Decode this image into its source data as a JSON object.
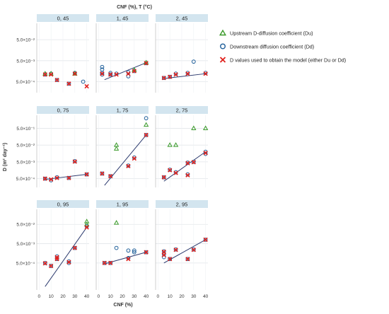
{
  "chart_data": {
    "type": "scatter",
    "title": "CNF (%), T (°C)",
    "xlabel": "CNF (%)",
    "ylabel": "D (m² day⁻¹)",
    "y_scale": "log",
    "x_ticks": [
      0,
      10,
      20,
      30,
      40
    ],
    "x_tick_labels": [
      "0",
      "10",
      "20",
      "30",
      "40"
    ],
    "xlim": [
      -2,
      42
    ],
    "y_tick_labels": [
      "5.0×10⁻¹",
      "5.0×10⁻²",
      "5.0×10⁻³",
      "5.0×10⁻⁴"
    ],
    "y_tick_values": [
      0.5,
      0.05,
      0.005,
      0.0005
    ],
    "legend": {
      "placement": "right",
      "entries": [
        {
          "key": "du",
          "marker": "triangle",
          "color": "#3a9a2a",
          "text": "Upstream D-diffusion coefficient (Du)"
        },
        {
          "key": "dd",
          "marker": "circle",
          "color": "#1f5f9a",
          "text": "Downstream diffusion coefficient (Dd)"
        },
        {
          "key": "dm",
          "marker": "x",
          "color": "#e0201c",
          "text": "D values used to obtain the model (either Du or Dd)"
        }
      ]
    },
    "colors": {
      "du": "#3a9a2a",
      "dd": "#1f5f9a",
      "dm": "#e0201c",
      "fit": "#2c3a6e",
      "strip": "#d3e5ef"
    },
    "panels": [
      {
        "label": "0, 45",
        "ylim": [
          0.00015,
          0.3
        ],
        "y_ticks": [
          0.05,
          0.005,
          0.0005
        ],
        "y_tick_labels": [
          "5.0×10⁻²",
          "5.0×10⁻³",
          "5.0×10⁻⁴"
        ],
        "du": [
          [
            5,
            0.0012
          ],
          [
            10,
            0.0012
          ],
          [
            30,
            0.0012
          ]
        ],
        "dd": [
          [
            5,
            0.0011
          ],
          [
            10,
            0.0012
          ],
          [
            15,
            0.0006
          ],
          [
            25,
            0.0004
          ],
          [
            30,
            0.0013
          ],
          [
            37,
            0.0005
          ]
        ],
        "model": [
          [
            5,
            0.0011
          ],
          [
            10,
            0.0011
          ],
          [
            15,
            0.0006
          ],
          [
            25,
            0.0004
          ],
          [
            30,
            0.0012
          ],
          [
            40,
            0.0003
          ]
        ],
        "fit": null
      },
      {
        "label": "1, 45",
        "ylim": [
          0.00015,
          0.3
        ],
        "y_ticks": [
          0.05,
          0.005,
          0.0005
        ],
        "y_tick_labels": [
          "",
          "",
          ""
        ],
        "du": [
          [
            30,
            0.0018
          ],
          [
            40,
            0.004
          ]
        ],
        "dd": [
          [
            3,
            0.0025
          ],
          [
            3,
            0.0019
          ],
          [
            3,
            0.0013
          ],
          [
            3,
            0.0011
          ],
          [
            10,
            0.0013
          ],
          [
            10,
            0.0011
          ],
          [
            15,
            0.0012
          ],
          [
            25,
            0.0014
          ],
          [
            25,
            0.0009
          ],
          [
            30,
            0.0016
          ],
          [
            40,
            0.0038
          ]
        ],
        "model": [
          [
            3,
            0.0012
          ],
          [
            10,
            0.0011
          ],
          [
            15,
            0.0011
          ],
          [
            25,
            0.0012
          ],
          [
            30,
            0.0016
          ],
          [
            40,
            0.0038
          ]
        ],
        "fit": [
          [
            5,
            0.00062
          ],
          [
            40,
            0.004
          ]
        ]
      },
      {
        "label": "2, 45",
        "ylim": [
          0.00015,
          0.3
        ],
        "y_ticks": [
          0.05,
          0.005,
          0.0005
        ],
        "y_tick_labels": [
          "",
          "",
          ""
        ],
        "du": [],
        "dd": [
          [
            5,
            0.00075
          ],
          [
            10,
            0.00085
          ],
          [
            15,
            0.0012
          ],
          [
            25,
            0.0013
          ],
          [
            30,
            0.0045
          ],
          [
            40,
            0.0013
          ]
        ],
        "model": [
          [
            5,
            0.00075
          ],
          [
            10,
            0.00085
          ],
          [
            15,
            0.0011
          ],
          [
            25,
            0.0012
          ],
          [
            40,
            0.0012
          ]
        ],
        "fit": [
          [
            5,
            0.0007
          ],
          [
            40,
            0.0012
          ]
        ]
      },
      {
        "label": "0, 75",
        "ylim": [
          0.00015,
          3.0
        ],
        "y_ticks": [
          0.5,
          0.05,
          0.005,
          0.0005
        ],
        "y_tick_labels": [
          "5.0×10⁻¹",
          "5.0×10⁻²",
          "5.0×10⁻³",
          "5.0×10⁻⁴"
        ],
        "du": [],
        "dd": [
          [
            5,
            0.0005
          ],
          [
            10,
            0.0004
          ],
          [
            15,
            0.0006
          ],
          [
            25,
            0.00055
          ],
          [
            30,
            0.0055
          ],
          [
            40,
            0.0009
          ]
        ],
        "model": [
          [
            5,
            0.0005
          ],
          [
            10,
            0.00045
          ],
          [
            15,
            0.00055
          ],
          [
            25,
            0.00055
          ],
          [
            30,
            0.0052
          ],
          [
            40,
            0.0009
          ]
        ],
        "fit": [
          [
            5,
            0.00045
          ],
          [
            40,
            0.0009
          ]
        ]
      },
      {
        "label": "1, 75",
        "ylim": [
          0.00015,
          3.0
        ],
        "y_ticks": [
          0.5,
          0.05,
          0.005,
          0.0005
        ],
        "y_tick_labels": [
          "",
          "",
          "",
          ""
        ],
        "du": [
          [
            15,
            0.05
          ],
          [
            15,
            0.03
          ],
          [
            40,
            0.8
          ]
        ],
        "dd": [
          [
            3,
            0.001
          ],
          [
            10,
            0.0007
          ],
          [
            25,
            0.003
          ],
          [
            30,
            0.009
          ],
          [
            40,
            2.0
          ],
          [
            40,
            0.2
          ]
        ],
        "model": [
          [
            3,
            0.001
          ],
          [
            10,
            0.0007
          ],
          [
            25,
            0.0028
          ],
          [
            30,
            0.008
          ],
          [
            40,
            0.2
          ]
        ],
        "fit": [
          [
            5,
            0.0002
          ],
          [
            40,
            0.2
          ]
        ]
      },
      {
        "label": "2, 75",
        "ylim": [
          0.00015,
          3.0
        ],
        "y_ticks": [
          0.5,
          0.05,
          0.005,
          0.0005
        ],
        "y_tick_labels": [
          "",
          "",
          "",
          ""
        ],
        "du": [
          [
            10,
            0.05
          ],
          [
            15,
            0.05
          ],
          [
            30,
            0.5
          ],
          [
            40,
            0.5
          ]
        ],
        "dd": [
          [
            5,
            0.0006
          ],
          [
            10,
            0.0017
          ],
          [
            15,
            0.0012
          ],
          [
            25,
            0.0045
          ],
          [
            25,
            0.0009
          ],
          [
            30,
            0.005
          ],
          [
            40,
            0.02
          ],
          [
            40,
            0.015
          ]
        ],
        "model": [
          [
            5,
            0.0006
          ],
          [
            10,
            0.0016
          ],
          [
            15,
            0.0011
          ],
          [
            25,
            0.0042
          ],
          [
            25,
            0.0008
          ],
          [
            30,
            0.0048
          ],
          [
            40,
            0.017
          ]
        ],
        "fit": [
          [
            5,
            0.00035
          ],
          [
            40,
            0.02
          ]
        ]
      },
      {
        "label": "0, 95",
        "ylim": [
          2e-05,
          0.3
        ],
        "y_ticks": [
          0.05,
          0.005,
          0.0005
        ],
        "y_tick_labels": [
          "5.0×10⁻²",
          "5.0×10⁻³",
          "5.0×10⁻⁴"
        ],
        "du": [
          [
            40,
            0.07
          ],
          [
            40,
            0.05
          ]
        ],
        "dd": [
          [
            5,
            0.0005
          ],
          [
            10,
            0.00035
          ],
          [
            15,
            0.0011
          ],
          [
            15,
            0.0008
          ],
          [
            25,
            0.0006
          ],
          [
            25,
            0.0005
          ],
          [
            30,
            0.003
          ],
          [
            40,
            0.04
          ]
        ],
        "model": [
          [
            5,
            0.00048
          ],
          [
            10,
            0.00035
          ],
          [
            15,
            0.001
          ],
          [
            15,
            0.0008
          ],
          [
            25,
            0.00055
          ],
          [
            30,
            0.003
          ],
          [
            40,
            0.035
          ]
        ],
        "fit": [
          [
            5,
            3e-05
          ],
          [
            40,
            0.035
          ]
        ]
      },
      {
        "label": "1, 95",
        "ylim": [
          2e-05,
          0.3
        ],
        "y_ticks": [
          0.05,
          0.005,
          0.0005
        ],
        "y_tick_labels": [
          "",
          "",
          ""
        ],
        "du": [
          [
            15,
            0.06
          ]
        ],
        "dd": [
          [
            5,
            0.0005
          ],
          [
            10,
            0.0005
          ],
          [
            15,
            0.003
          ],
          [
            25,
            0.0022
          ],
          [
            30,
            0.0022
          ],
          [
            30,
            0.0018
          ],
          [
            25,
            0.0009
          ],
          [
            40,
            0.0018
          ]
        ],
        "model": [
          [
            5,
            0.0005
          ],
          [
            10,
            0.0005
          ],
          [
            25,
            0.0008
          ],
          [
            40,
            0.0018
          ]
        ],
        "fit": [
          [
            5,
            0.00045
          ],
          [
            40,
            0.0018
          ]
        ]
      },
      {
        "label": "2, 95",
        "ylim": [
          2e-05,
          0.3
        ],
        "y_ticks": [
          0.05,
          0.005,
          0.0005
        ],
        "y_tick_labels": [
          "",
          "",
          ""
        ],
        "du": [],
        "dd": [
          [
            5,
            0.002
          ],
          [
            5,
            0.0014
          ],
          [
            5,
            0.001
          ],
          [
            10,
            0.0008
          ],
          [
            15,
            0.0025
          ],
          [
            25,
            0.0008
          ],
          [
            30,
            0.0025
          ],
          [
            40,
            0.008
          ]
        ],
        "model": [
          [
            5,
            0.0019
          ],
          [
            5,
            0.0013
          ],
          [
            10,
            0.0008
          ],
          [
            15,
            0.0024
          ],
          [
            25,
            0.0008
          ],
          [
            30,
            0.0024
          ],
          [
            40,
            0.008
          ]
        ],
        "fit": [
          [
            5,
            0.0005
          ],
          [
            40,
            0.008
          ]
        ]
      }
    ]
  }
}
